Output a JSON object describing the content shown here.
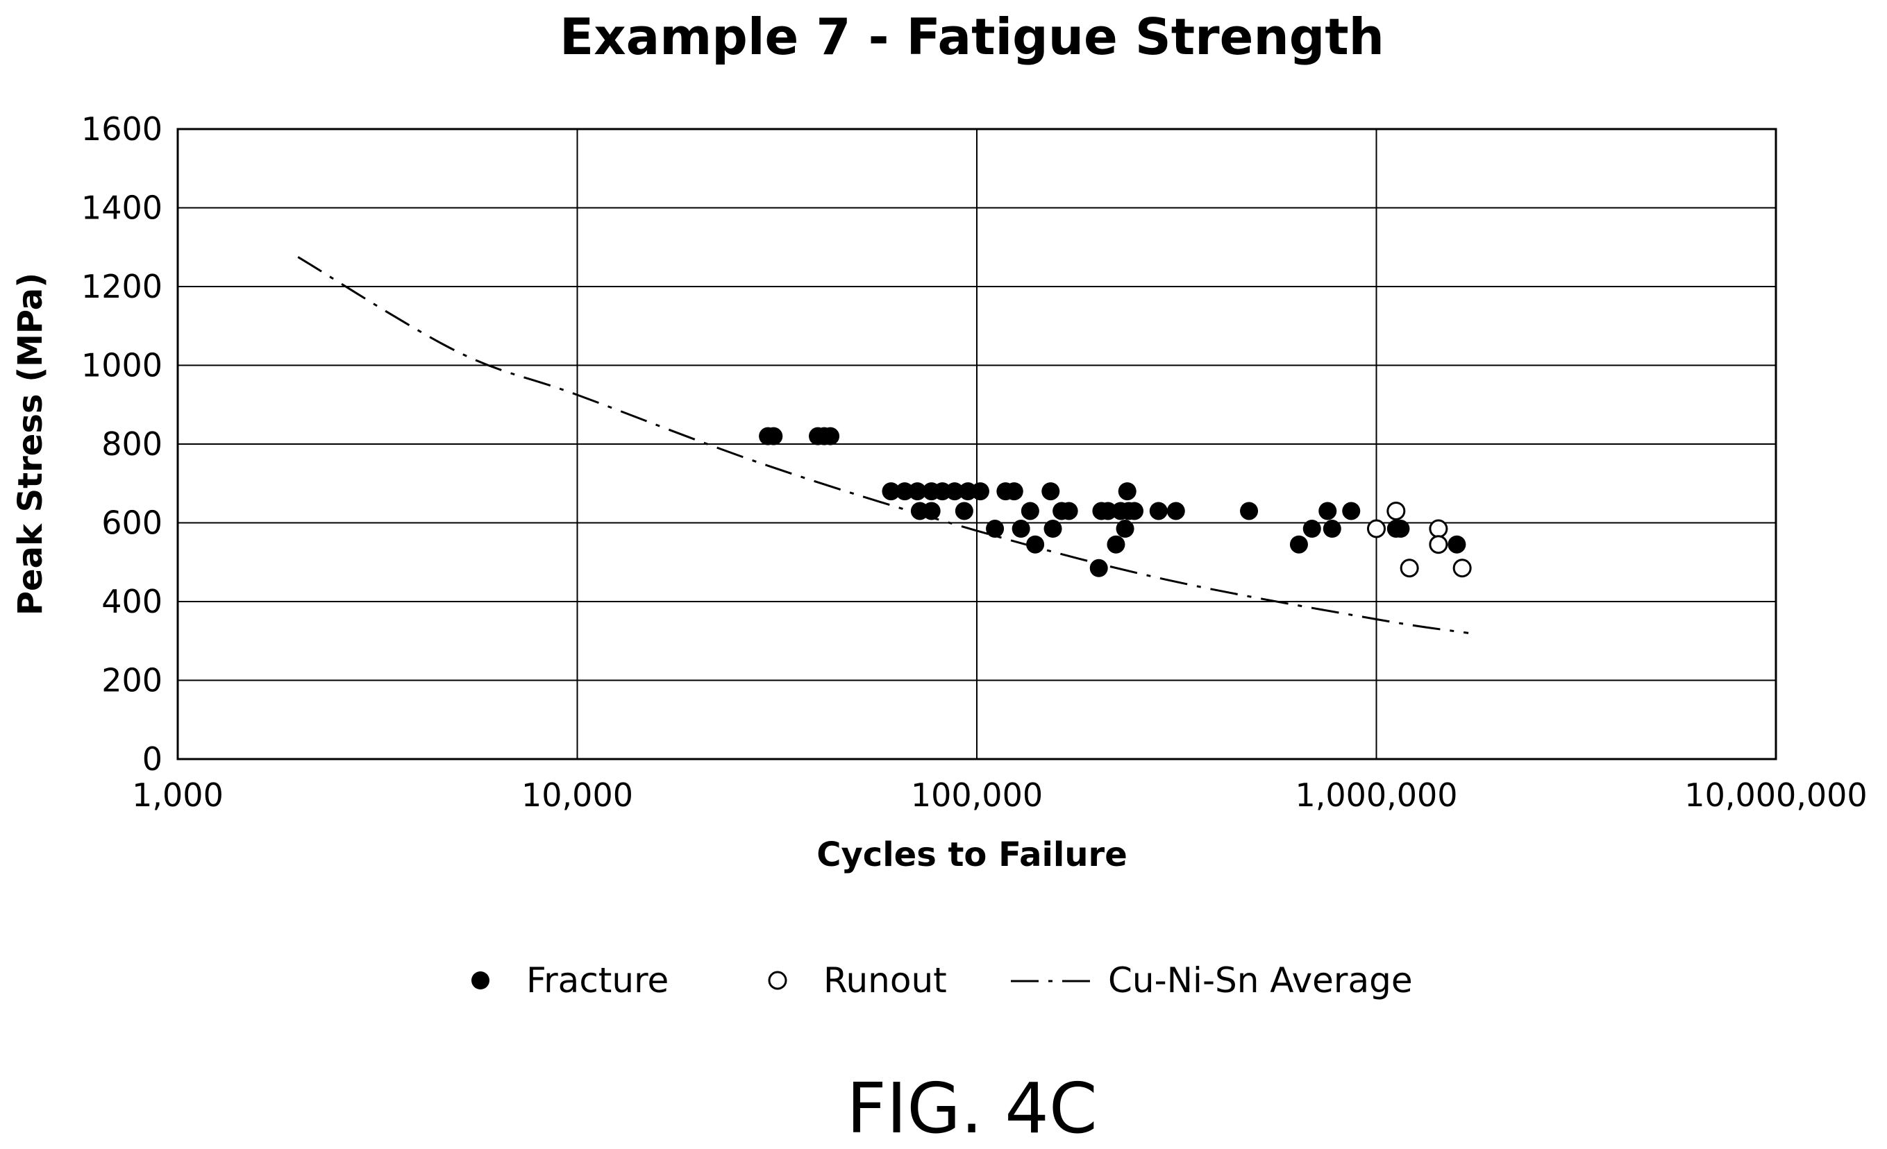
{
  "figure_label": "FIG. 4C",
  "chart_data": {
    "type": "scatter",
    "title": "Example 7 - Fatigue Strength",
    "xlabel": "Cycles to Failure",
    "ylabel": "Peak Stress (MPa)",
    "x_scale": "log",
    "xlim": [
      1000,
      10000000
    ],
    "ylim": [
      0,
      1600
    ],
    "x_ticks": [
      1000,
      10000,
      100000,
      1000000,
      10000000
    ],
    "x_tick_labels": [
      "1,000",
      "10,000",
      "100,000",
      "1,000,000",
      "10,000,000"
    ],
    "y_ticks": [
      0,
      200,
      400,
      600,
      800,
      1000,
      1200,
      1400,
      1600
    ],
    "y_tick_labels": [
      "0",
      "200",
      "400",
      "600",
      "800",
      "1000",
      "1200",
      "1400",
      "1600"
    ],
    "grid": true,
    "legend_position": "bottom",
    "series": [
      {
        "name": "Fracture",
        "marker": "filled-circle",
        "color": "#000000",
        "points": [
          [
            30000,
            820
          ],
          [
            31000,
            820
          ],
          [
            40000,
            820
          ],
          [
            41500,
            820
          ],
          [
            43000,
            820
          ],
          [
            61000,
            680
          ],
          [
            66000,
            680
          ],
          [
            71000,
            680
          ],
          [
            77000,
            680
          ],
          [
            82000,
            680
          ],
          [
            88000,
            680
          ],
          [
            95000,
            680
          ],
          [
            102000,
            680
          ],
          [
            118000,
            680
          ],
          [
            124000,
            680
          ],
          [
            153000,
            680
          ],
          [
            238000,
            680
          ],
          [
            72000,
            630
          ],
          [
            77000,
            630
          ],
          [
            93000,
            630
          ],
          [
            136000,
            630
          ],
          [
            163000,
            630
          ],
          [
            170000,
            630
          ],
          [
            205000,
            630
          ],
          [
            213000,
            630
          ],
          [
            229000,
            630
          ],
          [
            240000,
            630
          ],
          [
            248000,
            630
          ],
          [
            285000,
            630
          ],
          [
            315000,
            630
          ],
          [
            480000,
            630
          ],
          [
            755000,
            630
          ],
          [
            865000,
            630
          ],
          [
            111000,
            585
          ],
          [
            129000,
            585
          ],
          [
            155000,
            585
          ],
          [
            235000,
            585
          ],
          [
            690000,
            585
          ],
          [
            775000,
            585
          ],
          [
            1120000,
            585
          ],
          [
            1150000,
            585
          ],
          [
            140000,
            545
          ],
          [
            223000,
            545
          ],
          [
            640000,
            545
          ],
          [
            1590000,
            545
          ],
          [
            202000,
            485
          ]
        ]
      },
      {
        "name": "Runout",
        "marker": "open-circle",
        "color": "#000000",
        "points": [
          [
            1120000,
            630
          ],
          [
            1000000,
            585
          ],
          [
            1430000,
            585
          ],
          [
            1430000,
            545
          ],
          [
            1210000,
            485
          ],
          [
            1640000,
            485
          ]
        ]
      },
      {
        "name": "Cu-Ni-Sn Average",
        "marker": "dash-dot-line",
        "color": "#000000",
        "points": [
          [
            2000,
            1275
          ],
          [
            5000,
            1035
          ],
          [
            10000,
            925
          ],
          [
            30000,
            745
          ],
          [
            100000,
            580
          ],
          [
            300000,
            455
          ],
          [
            1000000,
            355
          ],
          [
            1700000,
            320
          ]
        ]
      }
    ]
  }
}
